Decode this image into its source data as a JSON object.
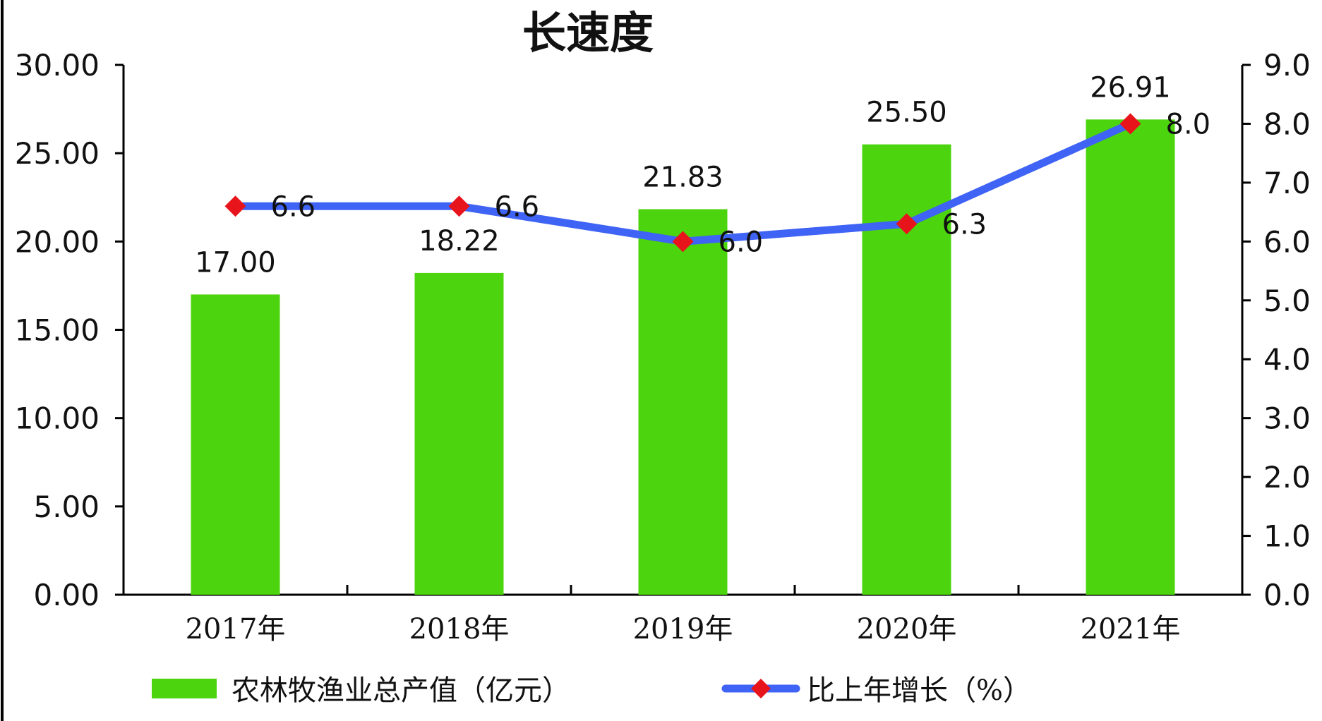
{
  "colors": {
    "bar": "#4cd40e",
    "line": "#3f63f5",
    "marker": "#e8141c",
    "axis": "#000000"
  },
  "chart_data": {
    "type": "bar",
    "title": "长速度",
    "categories": [
      "2017年",
      "2018年",
      "2019年",
      "2020年",
      "2021年"
    ],
    "series": [
      {
        "name": "农林牧渔业总产值（亿元）",
        "type": "bar",
        "axis": "left",
        "values": [
          17.0,
          18.22,
          21.83,
          25.5,
          26.91
        ],
        "labels": [
          "17.00",
          "18.22",
          "21.83",
          "25.50",
          "26.91"
        ]
      },
      {
        "name": "比上年增长（%）",
        "type": "line",
        "axis": "right",
        "values": [
          6.6,
          6.6,
          6.0,
          6.3,
          8.0
        ],
        "labels": [
          "6.6",
          "6.6",
          "6.0",
          "6.3",
          "8.0"
        ]
      }
    ],
    "y_left": {
      "ylim": [
        0,
        30
      ],
      "ticks": [
        "0.00",
        "5.00",
        "10.00",
        "15.00",
        "20.00",
        "25.00",
        "30.00"
      ]
    },
    "y_right": {
      "ylim": [
        0,
        9
      ],
      "ticks": [
        "0.0",
        "1.0",
        "2.0",
        "3.0",
        "4.0",
        "5.0",
        "6.0",
        "7.0",
        "8.0",
        "9.0"
      ]
    },
    "legend_position": "bottom",
    "grid": false
  }
}
